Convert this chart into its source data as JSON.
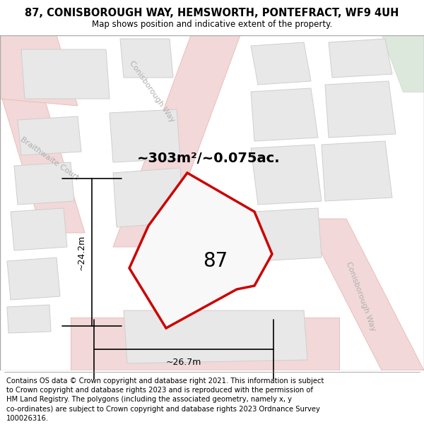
{
  "title": "87, CONISBOROUGH WAY, HEMSWORTH, PONTEFRACT, WF9 4UH",
  "subtitle": "Map shows position and indicative extent of the property.",
  "footer": "Contains OS data © Crown copyright and database right 2021. This information is subject\nto Crown copyright and database rights 2023 and is reproduced with the permission of\nHM Land Registry. The polygons (including the associated geometry, namely x, y\nco-ordinates) are subject to Crown copyright and database rights 2023 Ordnance Survey\n100026316.",
  "area_text": "~303m²/~0.075ac.",
  "plot_number": "87",
  "dim_horizontal": "~26.7m",
  "dim_vertical": "~24.2m",
  "street_label_bc": "Braithwaite Court",
  "street_label_cw1": "Conisborough Way",
  "street_label_cw2": "Conisborough Way",
  "map_bg": "#f5f4f2",
  "road_fill": "#f2d8d8",
  "road_edge": "#e8b8b8",
  "bld_fill": "#e8e8e8",
  "bld_edge": "#d0cece",
  "plot_fill": "#f8f8f8",
  "plot_edge": "#cc0000",
  "green_fill": "#dde8dd",
  "title_fontsize": 10.5,
  "subtitle_fontsize": 8.5,
  "footer_fontsize": 7.2,
  "area_fontsize": 14,
  "num_fontsize": 20,
  "dim_fontsize": 9,
  "street_fontsize": 8
}
